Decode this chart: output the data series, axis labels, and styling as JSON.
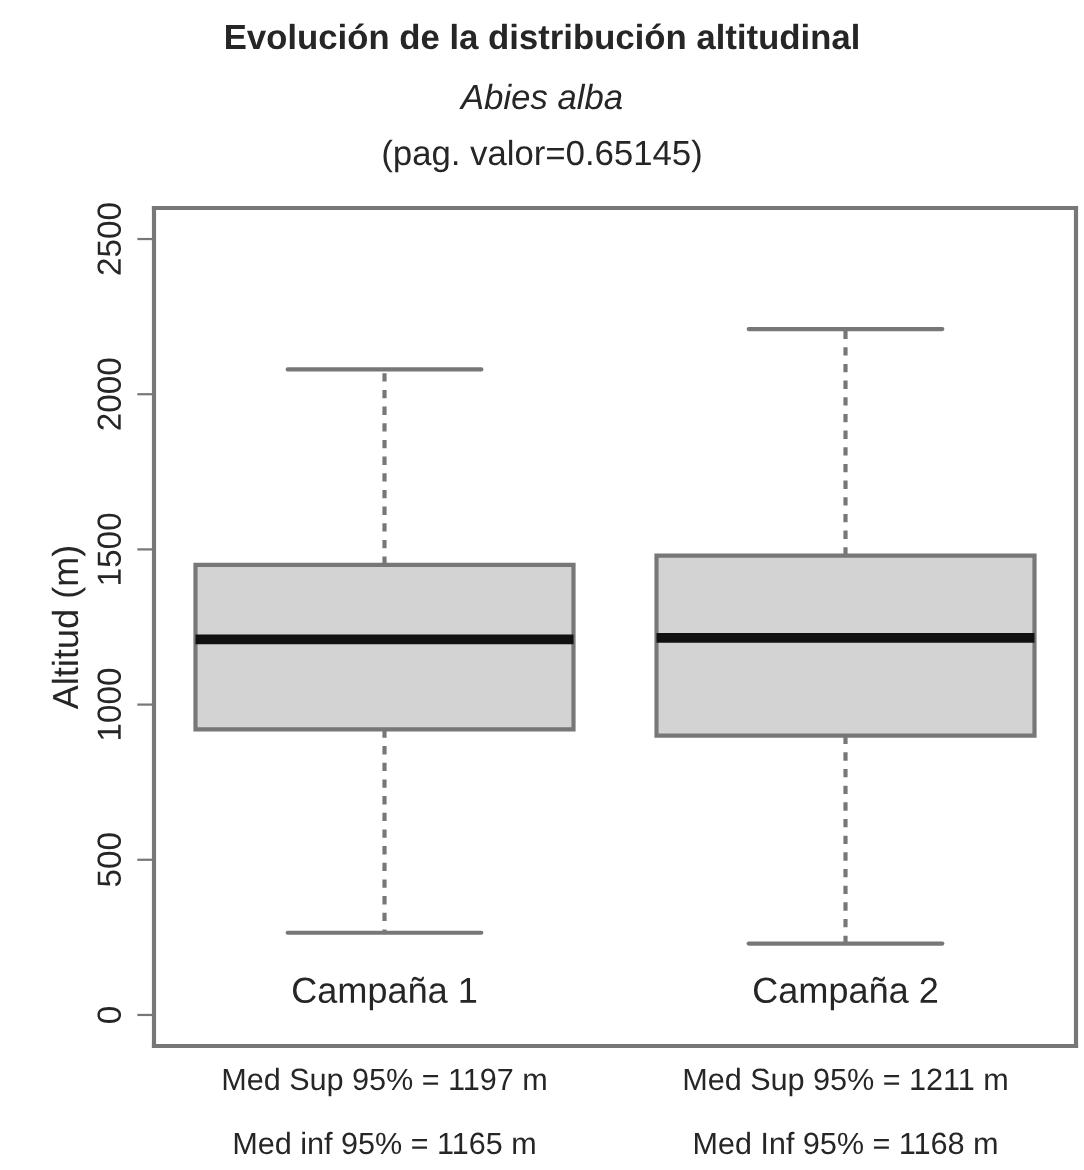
{
  "chart_data": {
    "type": "box",
    "title": "Evolución de la distribución altitudinal",
    "subtitle": "Abies alba",
    "ylabel": "Altitud (m)",
    "categories": [
      "Campaña 1",
      "Campaña 2"
    ],
    "boxes": [
      {
        "low": 265,
        "q1": 920,
        "median": 1210,
        "q3": 1450,
        "high": 2080
      },
      {
        "low": 230,
        "q1": 900,
        "median": 1215,
        "q3": 1480,
        "high": 2210
      }
    ],
    "color": "#d3d3d3",
    "ylim": [
      -100,
      2600
    ],
    "yticks": [
      0,
      500,
      1000,
      1500,
      2000,
      2500
    ],
    "grid": false,
    "annotations": [
      "(pag. valor=0.65145)",
      "Med Sup 95% = 1197 m",
      "Med inf 95% = 1165 m",
      "Med Sup 95% = 1211 m",
      "Med Inf 95% = 1168 m"
    ]
  }
}
